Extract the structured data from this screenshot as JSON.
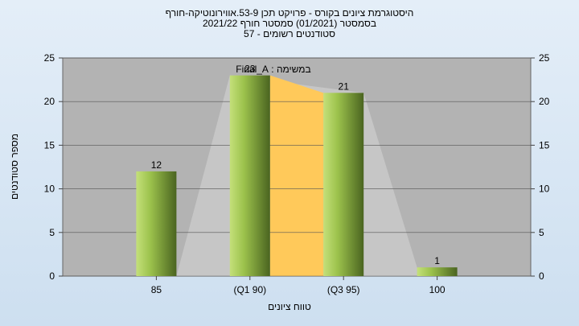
{
  "chart_data": {
    "type": "bar",
    "title": "היסטוגרמת ציונים בקורס - פרויקט תכן 53-9.אווירונוטיקה-חורף",
    "subtitle": "בסמסטר  (01/2021)  סמסטר חורף  2021/22",
    "enrolled": "סטודנטים רשומים - 57",
    "annotation": "במשימה : Final_A",
    "y_label": "מספר סטודנטים",
    "x_label": "טווח ציונים",
    "categories": [
      "85",
      "(Q1 90)",
      "(Q3 95)",
      "100"
    ],
    "values": [
      12,
      23,
      21,
      1
    ],
    "ylim": [
      0,
      25
    ],
    "yticks": [
      0,
      5,
      10,
      15,
      20,
      25
    ],
    "grid": true,
    "right_axis": true
  }
}
